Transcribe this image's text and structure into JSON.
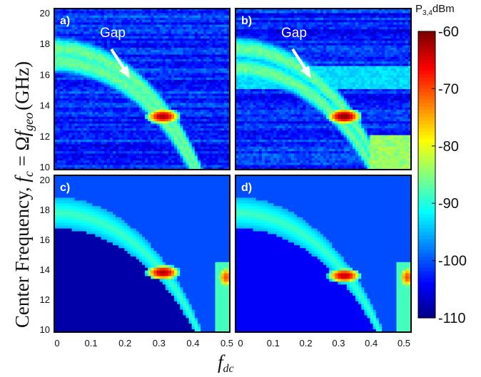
{
  "chart_data": {
    "type": "heatmap",
    "ylabel_prefix": "Center Frequency, ",
    "ylabel_math": "fc = Ωfgeo (GHz)",
    "ylabel_sym_f": "f",
    "ylabel_sym_c": "c",
    "ylabel_eq": " = Ω",
    "ylabel_sym_geo": "geo",
    "ylabel_unit": "(GHz)",
    "xlabel_f": "f",
    "xlabel_sub": "dc",
    "xlabel": "fdc",
    "xlim": [
      0,
      0.5
    ],
    "ylim": [
      10,
      20
    ],
    "x_tick_labels": [
      "0",
      "0.1",
      "0.2",
      "0.3",
      "0.4",
      "0.5"
    ],
    "y_tick_labels": [
      "20",
      "18",
      "16",
      "14",
      "12",
      "10"
    ],
    "colorbar": {
      "title": "P",
      "title_sub": "3,4",
      "unit": "dBm",
      "range": [
        -110,
        -60
      ],
      "tick_labels": [
        "-60",
        "-70",
        "-80",
        "-90",
        "-100",
        "-110"
      ],
      "colormap": "jet"
    },
    "panels": [
      {
        "label": "a)",
        "annotation": "Gap",
        "kind": "measured",
        "ridges": [
          {
            "name": "upper",
            "f0": 17.5,
            "x_end": 0.47
          },
          {
            "name": "lower",
            "f0": 17.0,
            "x_end": 0.42
          }
        ],
        "peak": {
          "x": 0.31,
          "y": 13.3,
          "value": -62
        }
      },
      {
        "label": "b)",
        "annotation": "Gap",
        "kind": "measured",
        "ridges": [
          {
            "name": "upper",
            "f0": 17.5,
            "x_end": 0.47
          },
          {
            "name": "lower",
            "f0": 16.6,
            "x_end": 0.42
          }
        ],
        "peak": {
          "x": 0.31,
          "y": 13.3,
          "value": -60
        }
      },
      {
        "label": "c)",
        "kind": "simulated",
        "ridges": [
          {
            "name": "band",
            "f0": 18.6,
            "x_end": 0.5
          },
          {
            "name": "edge",
            "f0": 16.6,
            "x_end": 0.5
          }
        ],
        "peak": {
          "x": 0.31,
          "y": 13.8,
          "value": -62
        },
        "peak2": {
          "x": 0.49,
          "y": 13.5,
          "value": -70
        }
      },
      {
        "label": "d)",
        "kind": "simulated",
        "ridges": [
          {
            "name": "band",
            "f0": 18.6,
            "x_end": 0.5
          },
          {
            "name": "edge",
            "f0": 16.6,
            "x_end": 0.5
          }
        ],
        "peak": {
          "x": 0.31,
          "y": 13.6,
          "value": -63
        },
        "peak2": {
          "x": 0.49,
          "y": 13.5,
          "value": -70
        }
      }
    ]
  }
}
